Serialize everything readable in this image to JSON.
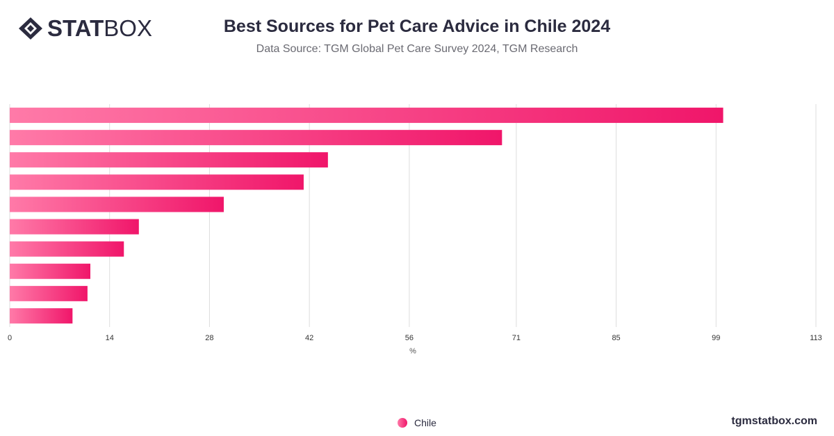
{
  "brand": {
    "logo_bold": "STAT",
    "logo_thin": "BOX",
    "logo_icon": "diamond-logo-icon"
  },
  "header": {
    "title": "Best Sources for Pet Care Advice in Chile 2024",
    "subtitle": "Data Source: TGM Global Pet Care Survey 2024, TGM Research"
  },
  "footer": {
    "site": "tgmstatbox.com"
  },
  "colors": {
    "bar_start": "#ff7aa8",
    "bar_end": "#f0166a",
    "grid": "#dddddd"
  },
  "chart_data": {
    "type": "bar",
    "orientation": "horizontal",
    "categories": [
      "",
      "",
      "",
      "",
      "",
      "",
      "",
      "",
      "",
      ""
    ],
    "series": [
      {
        "name": "Chile",
        "values": [
          100,
          69,
          44.6,
          41.2,
          30,
          18.1,
          16,
          11.3,
          10.9,
          8.8
        ]
      }
    ],
    "xlabel": "%",
    "xlim": [
      0,
      113
    ],
    "xticks": [
      0,
      14,
      28,
      42,
      56,
      71,
      85,
      99,
      113
    ],
    "grid": true,
    "legend_position": "bottom-center"
  }
}
